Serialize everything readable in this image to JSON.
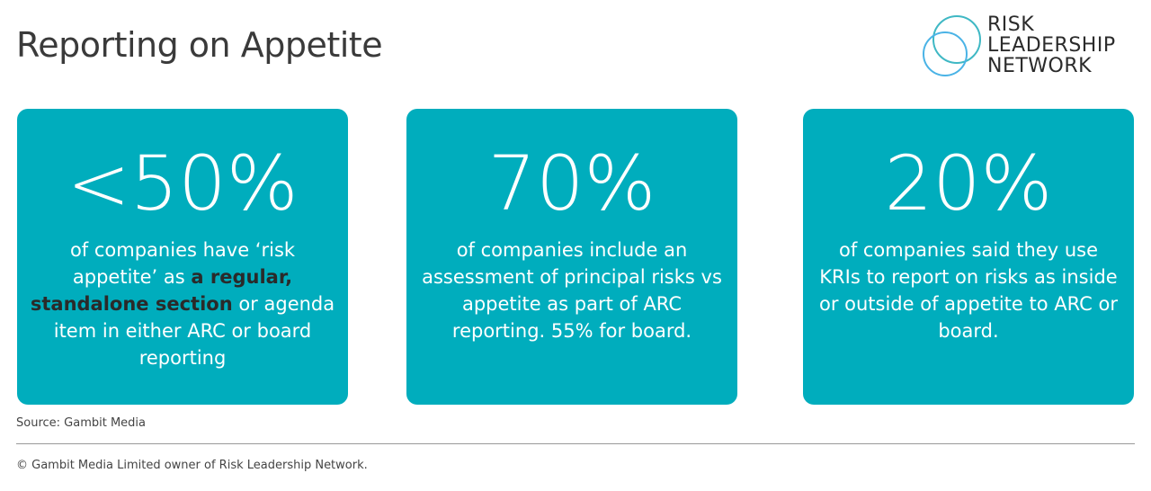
{
  "title": "Reporting on Appetite",
  "logo": {
    "lines": [
      "RISK",
      "LEADERSHIP",
      "NETWORK"
    ],
    "colors": [
      "#3fb8c4",
      "#4ab3e6"
    ]
  },
  "accent": "#00adbd",
  "cards": [
    {
      "stat": "<50%",
      "text_before": "of companies have ‘risk appetite’ as ",
      "text_bold": "a regular, standalone section",
      "text_after": " or agenda item in either ARC or board reporting"
    },
    {
      "stat": "70%",
      "text_before": "of companies include an assessment of principal risks vs appetite as part of ARC reporting. 55% for board.",
      "text_bold": "",
      "text_after": ""
    },
    {
      "stat": "20%",
      "text_before": "of companies said they use KRIs to report on risks as inside or outside of appetite to ARC or board.",
      "text_bold": "",
      "text_after": ""
    }
  ],
  "source": "Source: Gambit Media",
  "copyright": "© Gambit Media Limited owner of Risk Leadership Network."
}
